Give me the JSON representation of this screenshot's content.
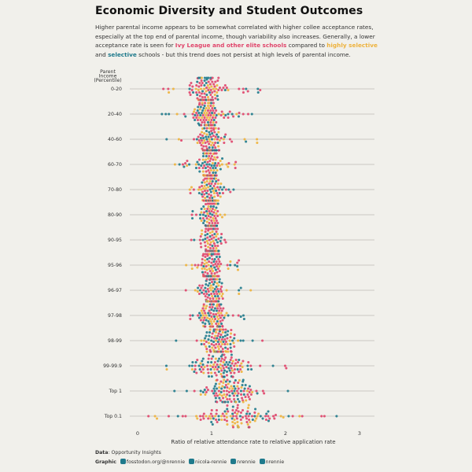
{
  "title": "Economic Diversity and Student Outcomes",
  "subtitle": {
    "part1": "Higher parental income appears to be somewhat correlated with higher collee acceptance rates, especially at the top end of parental income, though variability also increases. Generally, a lower acceptance rate is seen for ",
    "ivy": "Ivy League and other elite schools",
    "part2": " compared to ",
    "highly": "highly selective",
    "part3": " and ",
    "selective": "selective",
    "part4": " schools - but this trend does not persist at high levels of parental income."
  },
  "colors": {
    "background": "#F1F0EB",
    "ivy_elite": "#E0456B",
    "highly_selective": "#EEB23C",
    "selective": "#1F7A8C",
    "gridline": "#BDBCB6"
  },
  "caption": {
    "data_label": "Data",
    "data_value": ": Opportunity Insights",
    "graphic_label": "Graphic",
    "handles": [
      "fosstodon.org/@nrennie",
      "nicola-rennie",
      "nrennie",
      "nrennie"
    ],
    "icons": [
      "mastodon-icon",
      "linkedin-icon",
      "bluesky-icon",
      "github-icon"
    ]
  },
  "chart_data": {
    "type": "scatter",
    "subtype": "beeswarm",
    "ylabel": "Parent Income (Percentile)",
    "ylabel_lines": [
      "Parent",
      "Income",
      "(Percentile)"
    ],
    "xlabel": "Ratio of relative attendance rate to relative application rate",
    "xlim": [
      -0.05,
      3.15
    ],
    "x_ticks": [
      "0",
      "1",
      "2",
      "3"
    ],
    "grid": "horizontal",
    "categories": [
      "0-20",
      "20-40",
      "40-60",
      "60-70",
      "70-80",
      "80-90",
      "90-95",
      "95-96",
      "96-97",
      "97-98",
      "98-99",
      "99-99.9",
      "Top 1",
      "Top 0.1"
    ],
    "series": [
      {
        "name": "Ivy League and other elite schools",
        "color": "#E0456B"
      },
      {
        "name": "highly selective",
        "color": "#EEB23C"
      },
      {
        "name": "selective",
        "color": "#1F7A8C"
      }
    ],
    "distributions": [
      {
        "category": "0-20",
        "center": 0.92,
        "spread": 0.16,
        "min": 0.3,
        "max": 1.78
      },
      {
        "category": "20-40",
        "center": 0.95,
        "spread": 0.14,
        "min": 0.13,
        "max": 1.62
      },
      {
        "category": "40-60",
        "center": 0.97,
        "spread": 0.12,
        "min": 0.38,
        "max": 1.77
      },
      {
        "category": "60-70",
        "center": 0.98,
        "spread": 0.1,
        "min": 0.5,
        "max": 1.35
      },
      {
        "category": "70-80",
        "center": 0.99,
        "spread": 0.09,
        "min": 0.7,
        "max": 1.3
      },
      {
        "category": "80-90",
        "center": 0.98,
        "spread": 0.08,
        "min": 0.72,
        "max": 1.2
      },
      {
        "category": "90-95",
        "center": 0.99,
        "spread": 0.09,
        "min": 0.7,
        "max": 1.25
      },
      {
        "category": "95-96",
        "center": 1.0,
        "spread": 0.1,
        "min": 0.62,
        "max": 1.38
      },
      {
        "category": "96-97",
        "center": 1.0,
        "spread": 0.11,
        "min": 0.6,
        "max": 1.55
      },
      {
        "category": "97-98",
        "center": 1.02,
        "spread": 0.13,
        "min": 0.6,
        "max": 1.6
      },
      {
        "category": "98-99",
        "center": 1.1,
        "spread": 0.18,
        "min": 0.5,
        "max": 1.85
      },
      {
        "category": "99-99.9",
        "center": 1.15,
        "spread": 0.25,
        "min": 0.38,
        "max": 2.05
      },
      {
        "category": "Top 1",
        "center": 1.25,
        "spread": 0.28,
        "min": 0.35,
        "max": 2.05
      },
      {
        "category": "Top 0.1",
        "center": 1.35,
        "spread": 0.38,
        "min": 0.05,
        "max": 3.05
      }
    ],
    "points_per_row": 120
  }
}
